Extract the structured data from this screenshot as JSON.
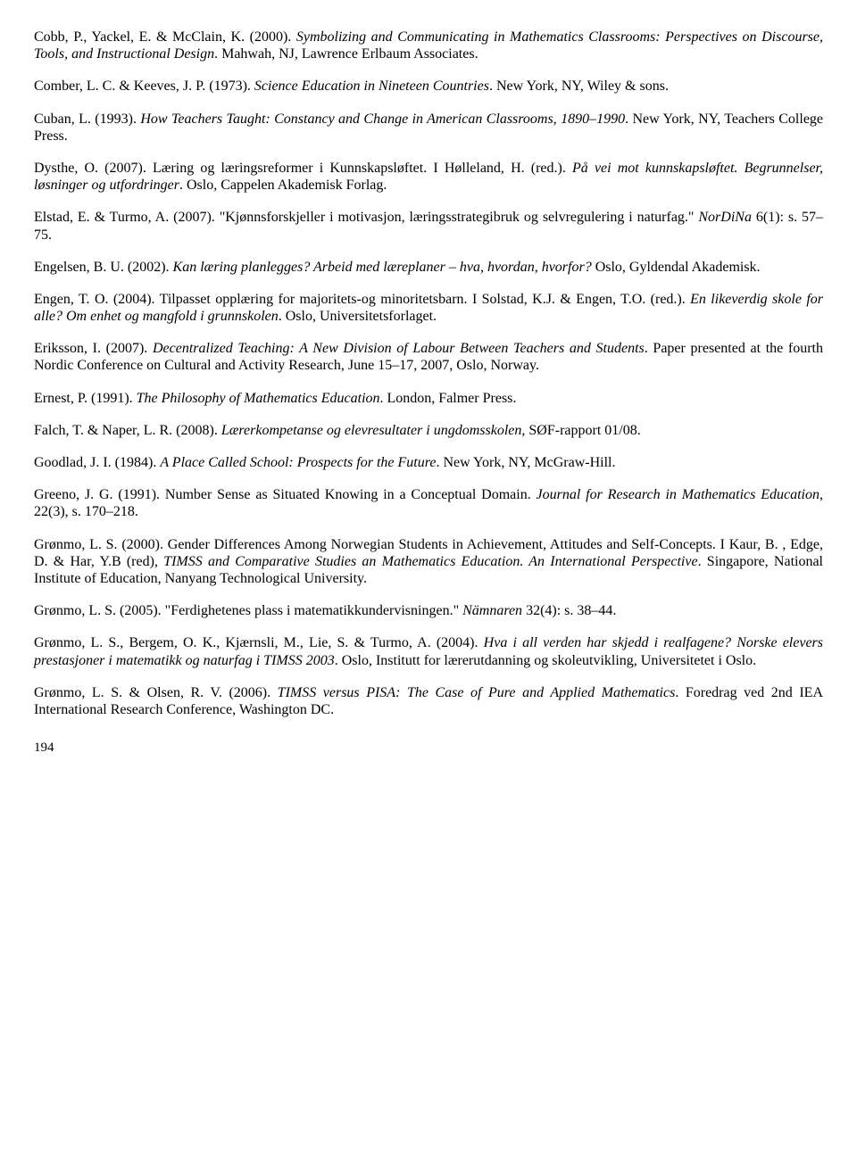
{
  "refs": [
    {
      "parts": [
        {
          "t": "Cobb, P., Yackel, E. & McClain, K. (2000). "
        },
        {
          "t": "Symbolizing and Communicating in Mathematics Classrooms: Perspectives on Discourse, Tools, and Instructional Design",
          "i": true
        },
        {
          "t": ". Mahwah, NJ, Lawrence Erlbaum Associates."
        }
      ]
    },
    {
      "parts": [
        {
          "t": "Comber, L. C. & Keeves, J. P. (1973). "
        },
        {
          "t": "Science Education in Nineteen Countries",
          "i": true
        },
        {
          "t": ". New York, NY, Wiley & sons."
        }
      ]
    },
    {
      "parts": [
        {
          "t": "Cuban, L. (1993). "
        },
        {
          "t": "How Teachers Taught: Constancy and Change in American Classrooms, 1890–1990",
          "i": true
        },
        {
          "t": ". New York, NY, Teachers College Press."
        }
      ]
    },
    {
      "parts": [
        {
          "t": "Dysthe, O. (2007). Læring og læringsreformer i Kunnskapsløftet. I Hølleland, H. (red.). "
        },
        {
          "t": "På vei mot kunnskapsløftet. Begrunnelser, løsninger og utfordringer",
          "i": true
        },
        {
          "t": ". Oslo, Cappelen Akademisk Forlag."
        }
      ]
    },
    {
      "parts": [
        {
          "t": "Elstad, E. & Turmo, A. (2007). \"Kjønnsforskjeller i motivasjon, læringsstrategibruk og selvregulering i naturfag.\" "
        },
        {
          "t": "NorDiNa",
          "i": true
        },
        {
          "t": " 6(1): s. 57–75."
        }
      ]
    },
    {
      "parts": [
        {
          "t": "Engelsen, B. U. (2002). "
        },
        {
          "t": "Kan læring planlegges? Arbeid med læreplaner – hva, hvordan, hvorfor?",
          "i": true
        },
        {
          "t": " Oslo, Gyldendal Akademisk."
        }
      ]
    },
    {
      "parts": [
        {
          "t": "Engen, T. O. (2004). Tilpasset opplæring for majoritets-og minoritetsbarn. I Solstad, K.J. & Engen, T.O. (red.). "
        },
        {
          "t": "En likeverdig skole for alle? Om enhet og mangfold i grunnskolen",
          "i": true
        },
        {
          "t": ". Oslo, Universitetsforlaget."
        }
      ]
    },
    {
      "parts": [
        {
          "t": "Eriksson, I. (2007). "
        },
        {
          "t": "Decentralized Teaching: A New Division of Labour Between Teachers and Students",
          "i": true
        },
        {
          "t": ". Paper presented at the fourth Nordic Conference on Cultural and Activity Research, June 15–17, 2007, Oslo, Norway."
        }
      ]
    },
    {
      "parts": [
        {
          "t": "Ernest, P. (1991). "
        },
        {
          "t": "The Philosophy of Mathematics Education",
          "i": true
        },
        {
          "t": ". London, Falmer Press."
        }
      ]
    },
    {
      "parts": [
        {
          "t": "Falch, T. & Naper, L. R. (2008). "
        },
        {
          "t": "Lærerkompetanse og elevresultater i ungdomsskolen",
          "i": true
        },
        {
          "t": ", SØF-rapport 01/08."
        }
      ]
    },
    {
      "parts": [
        {
          "t": "Goodlad, J. I. (1984). "
        },
        {
          "t": "A Place Called School: Prospects for the Future",
          "i": true
        },
        {
          "t": ". New York, NY, McGraw-Hill."
        }
      ]
    },
    {
      "parts": [
        {
          "t": "Greeno, J. G. (1991). Number Sense as Situated Knowing in a Conceptual Domain. "
        },
        {
          "t": "Journal for Research in Mathematics Education,",
          "i": true
        },
        {
          "t": " 22(3), s. 170–218."
        }
      ]
    },
    {
      "parts": [
        {
          "t": "Grønmo, L. S. (2000). Gender Differences Among Norwegian Students in Achievement, Attitudes and Self-Concepts. I Kaur, B. , Edge, D. & Har, Y.B (red), "
        },
        {
          "t": "TIMSS and Comparative Studies an Mathematics Education. An International Perspective",
          "i": true
        },
        {
          "t": ". Singapore, National Institute of Education, Nanyang Technological University."
        }
      ]
    },
    {
      "parts": [
        {
          "t": "Grønmo, L. S. (2005). \"Ferdighetenes plass i matematikkundervisningen.\" "
        },
        {
          "t": "Nämnaren",
          "i": true
        },
        {
          "t": " 32(4): s. 38–44."
        }
      ]
    },
    {
      "parts": [
        {
          "t": "Grønmo, L. S., Bergem, O. K., Kjærnsli, M., Lie, S. & Turmo, A. (2004). "
        },
        {
          "t": "Hva i all verden har skjedd i realfagene? Norske elevers prestasjoner i matematikk og naturfag i TIMSS 2003",
          "i": true
        },
        {
          "t": ". Oslo, Institutt for lærerutdanning og skoleutvikling, Universitetet i Oslo."
        }
      ]
    },
    {
      "parts": [
        {
          "t": "Grønmo, L. S. & Olsen, R. V. (2006). "
        },
        {
          "t": "TIMSS versus PISA: The Case of Pure and Applied Mathematics",
          "i": true
        },
        {
          "t": ". Foredrag ved 2nd IEA International Research Conference, Washington DC."
        }
      ]
    }
  ],
  "page_number": "194"
}
